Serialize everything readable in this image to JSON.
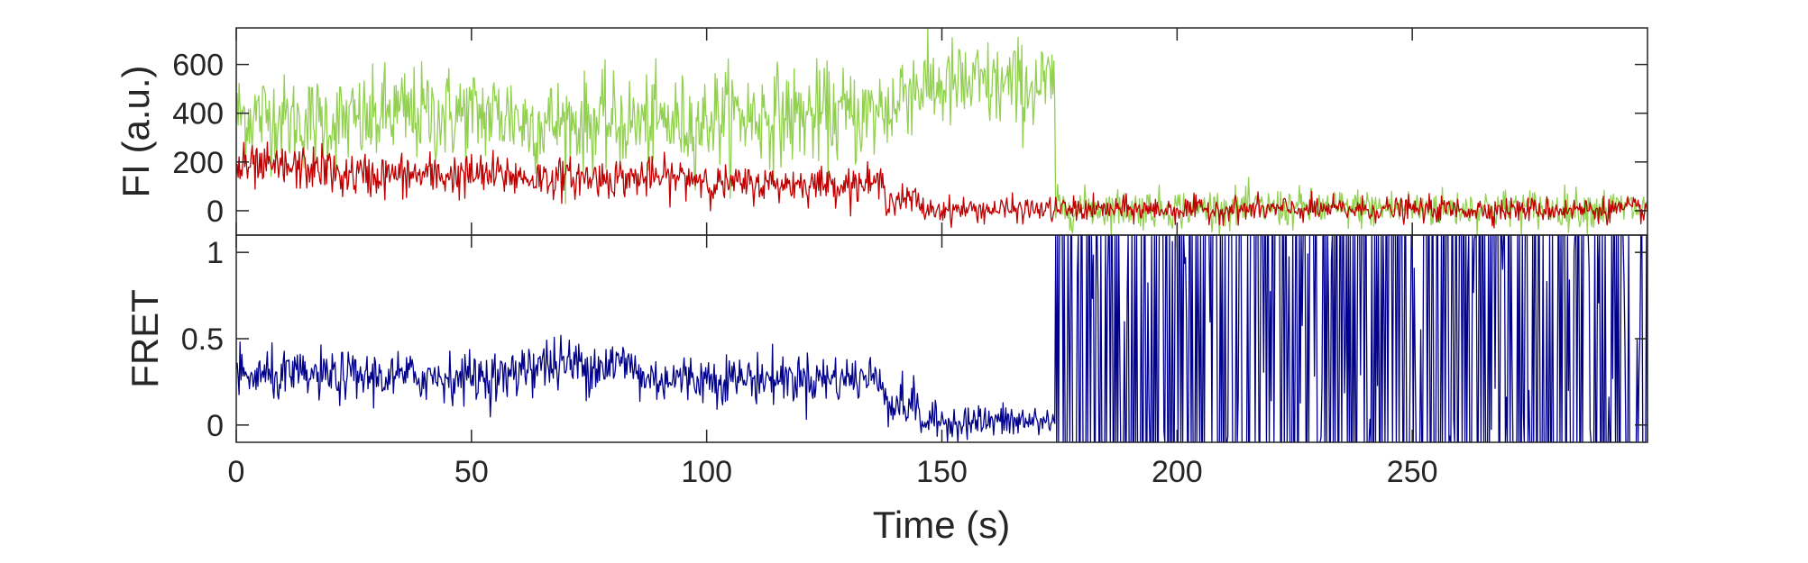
{
  "chart_data": [
    {
      "type": "line",
      "title": "",
      "xlabel": "",
      "ylabel": "FI (a.u.)",
      "xlim": [
        0,
        300
      ],
      "ylim": [
        -100,
        750
      ],
      "yticks": [
        0,
        200,
        400,
        600
      ],
      "xtick_labels_visible": false,
      "grid": false,
      "legend": "none",
      "series": [
        {
          "color": "#92d050",
          "segments": [
            {
              "t_start": 0,
              "t_end": 10,
              "mean": 390,
              "sd": 95
            },
            {
              "t_start": 10,
              "t_end": 30,
              "mean": 365,
              "sd": 95
            },
            {
              "t_start": 30,
              "t_end": 60,
              "mean": 395,
              "sd": 100
            },
            {
              "t_start": 60,
              "t_end": 100,
              "mean": 360,
              "sd": 95
            },
            {
              "t_start": 100,
              "t_end": 136,
              "mean": 390,
              "sd": 100
            },
            {
              "t_start": 136,
              "t_end": 141,
              "mean": 420,
              "sd": 100
            },
            {
              "t_start": 141,
              "t_end": 174,
              "mean": 510,
              "sd": 95
            },
            {
              "t_start": 174,
              "t_end": 300,
              "mean": 10,
              "sd": 40
            }
          ]
        },
        {
          "color": "#c00000",
          "segments": [
            {
              "t_start": 0,
              "t_end": 20,
              "mean": 175,
              "sd": 45
            },
            {
              "t_start": 20,
              "t_end": 60,
              "mean": 145,
              "sd": 45
            },
            {
              "t_start": 60,
              "t_end": 100,
              "mean": 135,
              "sd": 40
            },
            {
              "t_start": 100,
              "t_end": 138,
              "mean": 110,
              "sd": 35
            },
            {
              "t_start": 138,
              "t_end": 145,
              "mean": 45,
              "sd": 30
            },
            {
              "t_start": 145,
              "t_end": 175,
              "mean": 5,
              "sd": 25
            },
            {
              "t_start": 175,
              "t_end": 300,
              "mean": 5,
              "sd": 25
            }
          ]
        }
      ]
    },
    {
      "type": "line",
      "title": "",
      "xlabel": "Time (s)",
      "ylabel": "FRET",
      "xlim": [
        0,
        300
      ],
      "ylim": [
        -0.1,
        1.1
      ],
      "yticks": [
        0,
        0.5,
        1
      ],
      "xticks": [
        0,
        50,
        100,
        150,
        200,
        250
      ],
      "grid": false,
      "legend": "none",
      "series": [
        {
          "color": "#00008b",
          "segments": [
            {
              "t_start": 0,
              "t_end": 60,
              "mean": 0.28,
              "sd": 0.07
            },
            {
              "t_start": 60,
              "t_end": 85,
              "mean": 0.35,
              "sd": 0.08
            },
            {
              "t_start": 85,
              "t_end": 138,
              "mean": 0.27,
              "sd": 0.07
            },
            {
              "t_start": 138,
              "t_end": 145,
              "mean": 0.12,
              "sd": 0.07
            },
            {
              "t_start": 145,
              "t_end": 174,
              "mean": 0.02,
              "sd": 0.05
            },
            {
              "t_start": 174,
              "t_end": 300,
              "mean": 0.5,
              "sd": 0.6
            }
          ]
        }
      ]
    }
  ]
}
